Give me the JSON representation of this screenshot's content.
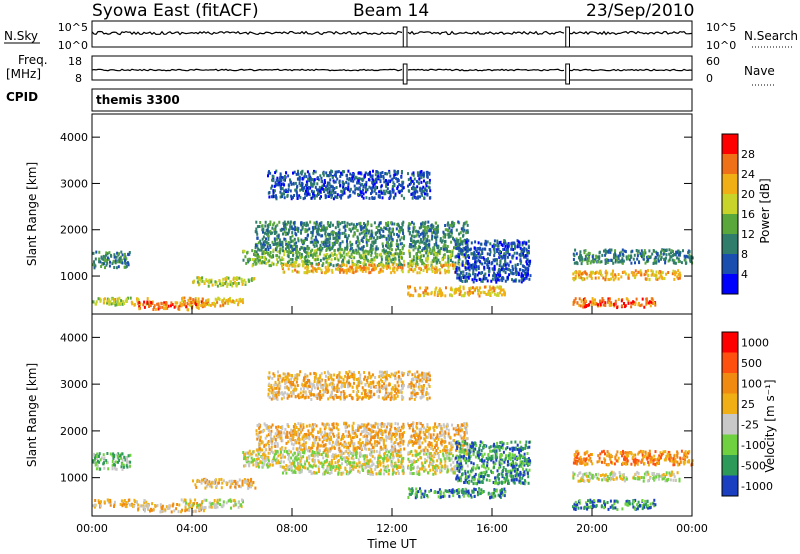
{
  "header": {
    "station": "Syowa East (fitACF)",
    "beam": "Beam 14",
    "date": "23/Sep/2010",
    "cpid_label": "CPID",
    "program": "themis 3300"
  },
  "status_panels": {
    "nsky": {
      "left_label": "N.Sky",
      "left_ticks": [
        "10^5",
        "10^0"
      ],
      "right_label": "N.Search",
      "right_ticks": [
        "10^5",
        "10^0"
      ]
    },
    "freq": {
      "left_label_top": "Freq.",
      "left_label_bottom": "[MHz]",
      "left_ticks": [
        "18",
        "8"
      ],
      "right_label": "Nave",
      "right_ticks": [
        "60",
        "0"
      ]
    },
    "gaps_hours": [
      [
        12.45,
        12.6
      ],
      [
        18.95,
        19.1
      ]
    ]
  },
  "chart_data": [
    {
      "type": "heatmap",
      "quantity": "Power",
      "ylabel": "Slant Range [km]",
      "ylim": [
        180,
        4500
      ],
      "yticks": [
        1000,
        2000,
        3000,
        4000
      ],
      "xlim_hours": [
        0,
        24
      ],
      "colorbar": {
        "label": "Power [dB]",
        "range": [
          0,
          32
        ],
        "tick_labels": [
          "4",
          "8",
          "12",
          "16",
          "20",
          "24",
          "28"
        ],
        "colors": [
          "#0000ff",
          "#1a4fb0",
          "#2f7d6a",
          "#5aa83c",
          "#c8d42a",
          "#f0b015",
          "#f07018",
          "#ff0000"
        ]
      },
      "echo_regions": [
        {
          "t": [
            0.0,
            2.3
          ],
          "r": [
            400,
            560
          ],
          "v": 20
        },
        {
          "t": [
            1.8,
            4.5
          ],
          "r": [
            300,
            480
          ],
          "v": 28
        },
        {
          "t": [
            3.5,
            6.0
          ],
          "r": [
            380,
            560
          ],
          "v": 22
        },
        {
          "t": [
            4.0,
            6.5
          ],
          "r": [
            800,
            1000
          ],
          "v": 16
        },
        {
          "t": [
            0.0,
            1.5
          ],
          "r": [
            1200,
            1550
          ],
          "v": 10
        },
        {
          "t": [
            6.0,
            15.0
          ],
          "r": [
            1250,
            1600
          ],
          "v": 12
        },
        {
          "t": [
            7.5,
            14.5
          ],
          "r": [
            1100,
            1280
          ],
          "v": 22
        },
        {
          "t": [
            6.5,
            15.0
          ],
          "r": [
            1600,
            2200
          ],
          "v": 8
        },
        {
          "t": [
            7.0,
            13.5
          ],
          "r": [
            2700,
            3300
          ],
          "v": 6
        },
        {
          "t": [
            12.5,
            16.5
          ],
          "r": [
            600,
            800
          ],
          "v": 24
        },
        {
          "t": [
            14.5,
            17.5
          ],
          "r": [
            900,
            1800
          ],
          "v": 6
        },
        {
          "t": [
            19.2,
            24.0
          ],
          "r": [
            1300,
            1600
          ],
          "v": 8
        },
        {
          "t": [
            19.2,
            23.5
          ],
          "r": [
            950,
            1150
          ],
          "v": 22
        },
        {
          "t": [
            19.2,
            22.5
          ],
          "r": [
            350,
            550
          ],
          "v": 26
        }
      ]
    },
    {
      "type": "heatmap",
      "quantity": "Velocity",
      "ylabel": "Slant Range [km]",
      "ylim": [
        180,
        4500
      ],
      "yticks": [
        1000,
        2000,
        3000,
        4000
      ],
      "xlim_hours": [
        0,
        24
      ],
      "xticks": [
        "00:00",
        "04:00",
        "08:00",
        "12:00",
        "16:00",
        "20:00",
        "00:00"
      ],
      "xlabel": "Time UT",
      "colorbar": {
        "label": "Velocity [m s⁻¹]",
        "tick_labels": [
          "1000",
          "500",
          "100",
          "25",
          "-25",
          "-100",
          "-500",
          "-1000"
        ],
        "colors": [
          "#1a3fc0",
          "#2e9a5a",
          "#6fd040",
          "#c8c8c8",
          "#f0b015",
          "#f08a10",
          "#ff5010",
          "#ff0000"
        ]
      },
      "echo_regions": [
        {
          "t": [
            0.0,
            2.3
          ],
          "r": [
            400,
            560
          ],
          "v": 4
        },
        {
          "t": [
            1.8,
            4.5
          ],
          "r": [
            300,
            480
          ],
          "v": 4
        },
        {
          "t": [
            3.5,
            6.0
          ],
          "r": [
            380,
            560
          ],
          "v": 3
        },
        {
          "t": [
            4.0,
            6.5
          ],
          "r": [
            800,
            1000
          ],
          "v": 4
        },
        {
          "t": [
            0.0,
            1.5
          ],
          "r": [
            1200,
            1550
          ],
          "v": 2
        },
        {
          "t": [
            6.0,
            15.0
          ],
          "r": [
            1250,
            1600
          ],
          "v": 3
        },
        {
          "t": [
            7.5,
            14.5
          ],
          "r": [
            1100,
            1280
          ],
          "v": 3
        },
        {
          "t": [
            6.5,
            15.0
          ],
          "r": [
            1600,
            2200
          ],
          "v": 4
        },
        {
          "t": [
            7.0,
            13.5
          ],
          "r": [
            2700,
            3300
          ],
          "v": 4
        },
        {
          "t": [
            12.5,
            16.5
          ],
          "r": [
            600,
            800
          ],
          "v": 1
        },
        {
          "t": [
            14.5,
            17.5
          ],
          "r": [
            900,
            1800
          ],
          "v": 1
        },
        {
          "t": [
            19.2,
            24.0
          ],
          "r": [
            1300,
            1600
          ],
          "v": 5
        },
        {
          "t": [
            19.2,
            23.5
          ],
          "r": [
            950,
            1150
          ],
          "v": 3
        },
        {
          "t": [
            19.2,
            22.5
          ],
          "r": [
            350,
            550
          ],
          "v": 1
        }
      ]
    }
  ]
}
